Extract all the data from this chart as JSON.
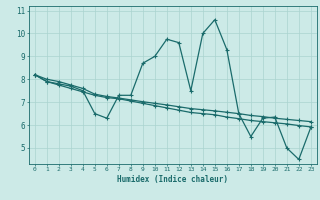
{
  "title": "",
  "xlabel": "Humidex (Indice chaleur)",
  "ylabel": "",
  "background_color": "#cceae7",
  "line_color": "#1a6b6b",
  "xlim": [
    -0.5,
    23.5
  ],
  "ylim": [
    4.3,
    11.2
  ],
  "xticks": [
    0,
    1,
    2,
    3,
    4,
    5,
    6,
    7,
    8,
    9,
    10,
    11,
    12,
    13,
    14,
    15,
    16,
    17,
    18,
    19,
    20,
    21,
    22,
    23
  ],
  "yticks": [
    5,
    6,
    7,
    8,
    9,
    10,
    11
  ],
  "grid_color": "#aad4cf",
  "series1": [
    8.2,
    7.9,
    7.8,
    7.7,
    7.5,
    6.5,
    6.3,
    7.3,
    7.3,
    8.7,
    9.0,
    9.75,
    9.6,
    7.5,
    10.0,
    10.6,
    9.3,
    6.5,
    5.5,
    6.3,
    6.35,
    5.0,
    4.5,
    5.9
  ],
  "series2": [
    8.2,
    7.9,
    7.75,
    7.6,
    7.45,
    7.3,
    7.2,
    7.15,
    7.05,
    6.95,
    6.85,
    6.75,
    6.65,
    6.55,
    6.5,
    6.45,
    6.35,
    6.28,
    6.2,
    6.15,
    6.1,
    6.05,
    5.98,
    5.92
  ],
  "series3": [
    8.2,
    8.0,
    7.9,
    7.75,
    7.6,
    7.35,
    7.25,
    7.18,
    7.1,
    7.02,
    6.95,
    6.88,
    6.8,
    6.72,
    6.67,
    6.62,
    6.56,
    6.5,
    6.42,
    6.37,
    6.3,
    6.25,
    6.2,
    6.15
  ]
}
